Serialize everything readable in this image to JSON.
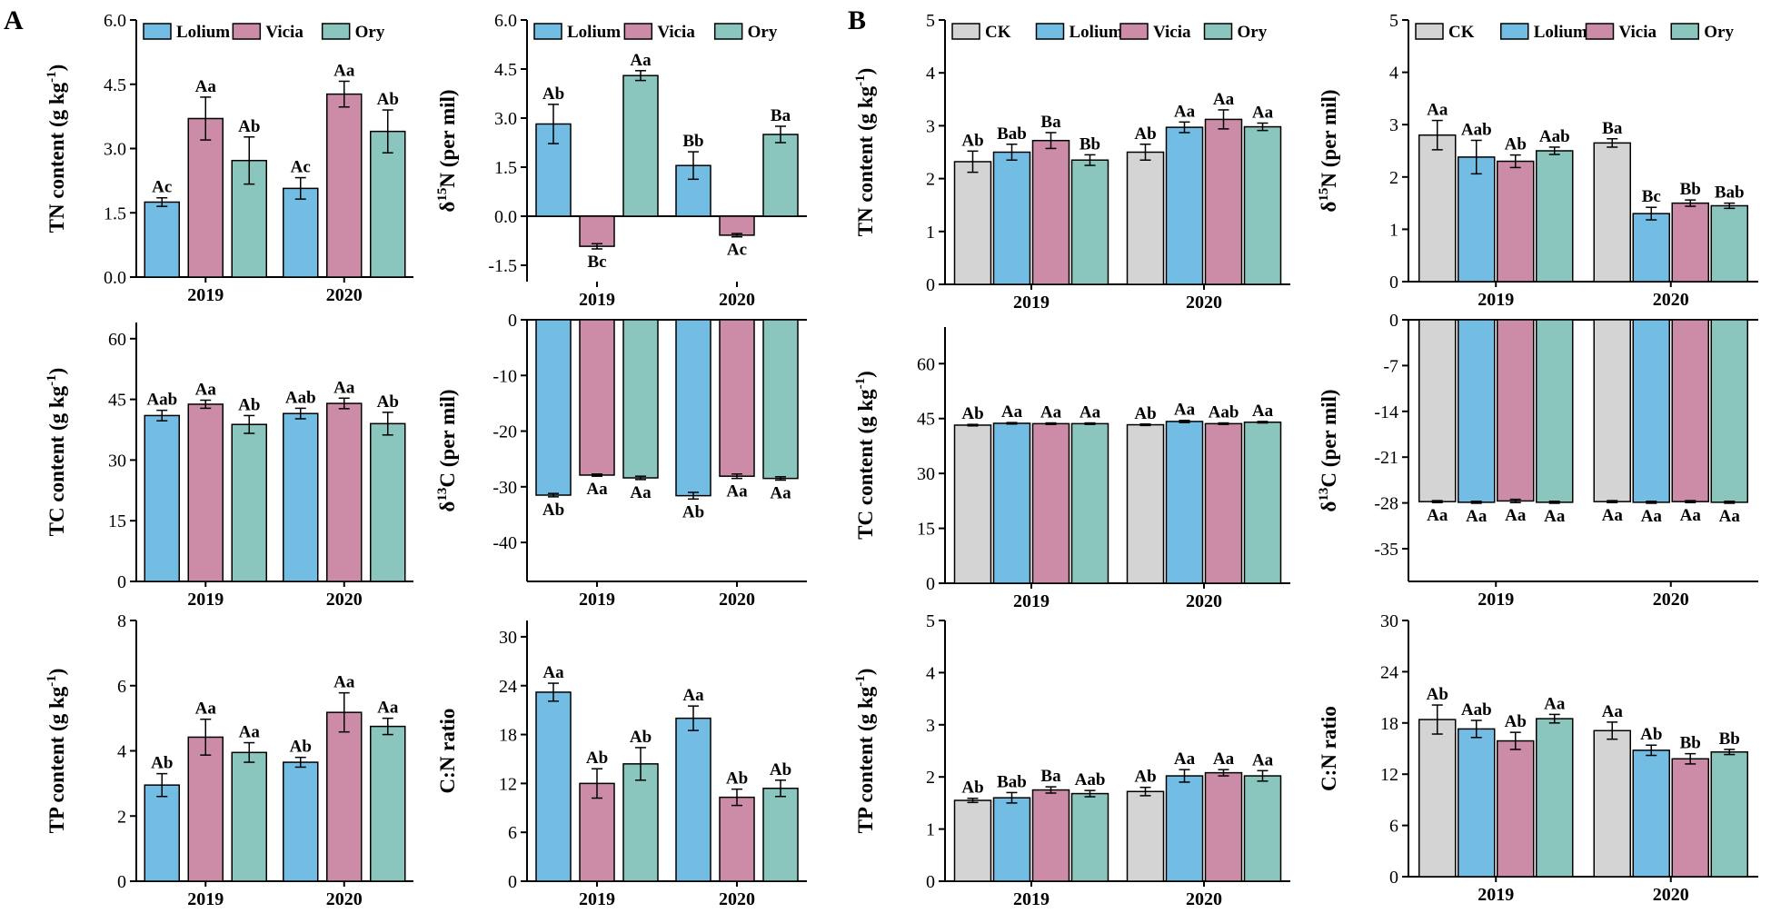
{
  "figure": {
    "panel_labels": [
      "A",
      "B"
    ],
    "colors": {
      "CK": "#d4d4d4",
      "Lolium": "#73bde5",
      "Vicia": "#cc8ca8",
      "Ory": "#8ac6bd"
    }
  },
  "chart_data": [
    {
      "id": "A-TN",
      "panel": "A",
      "type": "bar",
      "title": "",
      "xlabel": "",
      "ylabel": "TN content  (g kg-1)",
      "ylabel_main": "TN content  (g kg",
      "ylabel_sup": "-1",
      "ylabel_tail": ")",
      "ylim": [
        0,
        6
      ],
      "yticks": [
        "0.0",
        "1.5",
        "3.0",
        "4.5",
        "6.0"
      ],
      "yticks_values": [
        0,
        1.5,
        3,
        4.5,
        6
      ],
      "categories": [
        "2019",
        "2020"
      ],
      "legend": [
        "Lolium",
        "Vicia",
        "Ory"
      ],
      "series": [
        {
          "name": "Lolium",
          "values": [
            1.75,
            2.07
          ],
          "errors": [
            0.1,
            0.25
          ],
          "labels": [
            "Ac",
            "Ac"
          ]
        },
        {
          "name": "Vicia",
          "values": [
            3.7,
            4.27
          ],
          "errors": [
            0.5,
            0.3
          ],
          "labels": [
            "Aa",
            "Aa"
          ]
        },
        {
          "name": "Ory",
          "values": [
            2.72,
            3.4
          ],
          "errors": [
            0.55,
            0.5
          ],
          "labels": [
            "Ab",
            "Ab"
          ]
        }
      ]
    },
    {
      "id": "A-d15N",
      "panel": "A",
      "type": "bar",
      "title": "",
      "xlabel": "",
      "ylabel": "δ15N  (per mil)",
      "ylabel_main": "δ",
      "ylabel_sup": "15",
      "ylabel_tail": "N  (per mil)",
      "ylim": [
        -2,
        6
      ],
      "yticks": [
        "-1.5",
        "0.0",
        "1.5",
        "3.0",
        "4.5",
        "6.0"
      ],
      "yticks_values": [
        -1.5,
        0,
        1.5,
        3,
        4.5,
        6
      ],
      "categories": [
        "2019",
        "2020"
      ],
      "legend": [
        "Lolium",
        "Vicia",
        "Ory"
      ],
      "series": [
        {
          "name": "Lolium",
          "values": [
            2.82,
            1.55
          ],
          "errors": [
            0.6,
            0.42
          ],
          "labels": [
            "Ab",
            "Bb"
          ]
        },
        {
          "name": "Vicia",
          "values": [
            -0.92,
            -0.58
          ],
          "errors": [
            0.08,
            0.05
          ],
          "labels": [
            "Bc",
            "Ac"
          ]
        },
        {
          "name": "Ory",
          "values": [
            4.3,
            2.5
          ],
          "errors": [
            0.15,
            0.25
          ],
          "labels": [
            "Aa",
            "Ba"
          ]
        }
      ]
    },
    {
      "id": "A-TC",
      "panel": "A",
      "type": "bar",
      "title": "",
      "xlabel": "",
      "ylabel": "TC content  (g kg-1)",
      "ylabel_main": "TC content  (g kg",
      "ylabel_sup": "-1",
      "ylabel_tail": ")",
      "ylim": [
        0,
        64
      ],
      "yticks": [
        "0",
        "15",
        "30",
        "45",
        "60"
      ],
      "yticks_values": [
        0,
        15,
        30,
        45,
        60
      ],
      "categories": [
        "2019",
        "2020"
      ],
      "legend": [],
      "series": [
        {
          "name": "Lolium",
          "values": [
            41,
            41.5
          ],
          "errors": [
            1.3,
            1.3
          ],
          "labels": [
            "Aab",
            "Aab"
          ]
        },
        {
          "name": "Vicia",
          "values": [
            43.8,
            44
          ],
          "errors": [
            1.0,
            1.3
          ],
          "labels": [
            "Aa",
            "Aa"
          ]
        },
        {
          "name": "Ory",
          "values": [
            38.8,
            39
          ],
          "errors": [
            2.2,
            2.8
          ],
          "labels": [
            "Ab",
            "Ab"
          ]
        }
      ]
    },
    {
      "id": "A-d13C",
      "panel": "A",
      "type": "bar",
      "title": "",
      "xlabel": "",
      "ylabel": "δ13C  (per mil)",
      "ylabel_main": "δ",
      "ylabel_sup": "13",
      "ylabel_tail": "C  (per mil)",
      "ylim": [
        -47,
        0
      ],
      "yticks": [
        "-40",
        "-30",
        "-20",
        "-10",
        "0"
      ],
      "yticks_values": [
        -40,
        -30,
        -20,
        -10,
        0
      ],
      "xaxis_at_bottom": true,
      "categories": [
        "2019",
        "2020"
      ],
      "legend": [],
      "series": [
        {
          "name": "Lolium",
          "values": [
            -31.5,
            -31.6
          ],
          "errors": [
            0.3,
            0.6
          ],
          "labels": [
            "Ab",
            "Ab"
          ]
        },
        {
          "name": "Vicia",
          "values": [
            -27.9,
            -28.1
          ],
          "errors": [
            0.2,
            0.4
          ],
          "labels": [
            "Aa",
            "Aa"
          ]
        },
        {
          "name": "Ory",
          "values": [
            -28.4,
            -28.5
          ],
          "errors": [
            0.3,
            0.3
          ],
          "labels": [
            "Aa",
            "Aa"
          ]
        }
      ]
    },
    {
      "id": "A-TP",
      "panel": "A",
      "type": "bar",
      "title": "",
      "xlabel": "",
      "ylabel": "TP content  (g kg-1)",
      "ylabel_main": "TP content  (g kg",
      "ylabel_sup": "-1",
      "ylabel_tail": ")",
      "ylim": [
        0,
        8
      ],
      "yticks": [
        "0",
        "2",
        "4",
        "6",
        "8"
      ],
      "yticks_values": [
        0,
        2,
        4,
        6,
        8
      ],
      "categories": [
        "2019",
        "2020"
      ],
      "legend": [],
      "series": [
        {
          "name": "Lolium",
          "values": [
            2.95,
            3.65
          ],
          "errors": [
            0.35,
            0.15
          ],
          "labels": [
            "Ab",
            "Ab"
          ]
        },
        {
          "name": "Vicia",
          "values": [
            4.42,
            5.18
          ],
          "errors": [
            0.55,
            0.6
          ],
          "labels": [
            "Aa",
            "Aa"
          ]
        },
        {
          "name": "Ory",
          "values": [
            3.95,
            4.75
          ],
          "errors": [
            0.3,
            0.25
          ],
          "labels": [
            "Aa",
            "Aa"
          ]
        }
      ]
    },
    {
      "id": "A-CN",
      "panel": "A",
      "type": "bar",
      "title": "",
      "xlabel": "",
      "ylabel": "C:N ratio",
      "ylabel_main": "C:N ratio",
      "ylabel_sup": "",
      "ylabel_tail": "",
      "ylim": [
        0,
        32
      ],
      "yticks": [
        "0",
        "6",
        "12",
        "18",
        "24",
        "30"
      ],
      "yticks_values": [
        0,
        6,
        12,
        18,
        24,
        30
      ],
      "categories": [
        "2019",
        "2020"
      ],
      "legend": [],
      "series": [
        {
          "name": "Lolium",
          "values": [
            23.2,
            20
          ],
          "errors": [
            1.1,
            1.5
          ],
          "labels": [
            "Aa",
            "Aa"
          ]
        },
        {
          "name": "Vicia",
          "values": [
            12,
            10.3
          ],
          "errors": [
            1.8,
            1.0
          ],
          "labels": [
            "Ab",
            "Ab"
          ]
        },
        {
          "name": "Ory",
          "values": [
            14.4,
            11.4
          ],
          "errors": [
            2.0,
            1.0
          ],
          "labels": [
            "Ab",
            "Ab"
          ]
        }
      ]
    },
    {
      "id": "B-TN",
      "panel": "B",
      "type": "bar",
      "title": "",
      "xlabel": "",
      "ylabel": "TN content (g kg-1)",
      "ylabel_main": "TN content (g kg",
      "ylabel_sup": "-1",
      "ylabel_tail": ")",
      "ylim": [
        0,
        5
      ],
      "yticks": [
        "0",
        "1",
        "2",
        "3",
        "4",
        "5"
      ],
      "yticks_values": [
        0,
        1,
        2,
        3,
        4,
        5
      ],
      "categories": [
        "2019",
        "2020"
      ],
      "legend": [
        "CK",
        "Lolium",
        "Vicia",
        "Ory"
      ],
      "series": [
        {
          "name": "CK",
          "values": [
            2.32,
            2.5
          ],
          "errors": [
            0.2,
            0.15
          ],
          "labels": [
            "Ab",
            "Ab"
          ]
        },
        {
          "name": "Lolium",
          "values": [
            2.5,
            2.97
          ],
          "errors": [
            0.15,
            0.1
          ],
          "labels": [
            "Bab",
            "Aa"
          ]
        },
        {
          "name": "Vicia",
          "values": [
            2.72,
            3.12
          ],
          "errors": [
            0.15,
            0.18
          ],
          "labels": [
            "Ba",
            "Aa"
          ]
        },
        {
          "name": "Ory",
          "values": [
            2.35,
            2.98
          ],
          "errors": [
            0.1,
            0.07
          ],
          "labels": [
            "Bb",
            "Aa"
          ]
        }
      ]
    },
    {
      "id": "B-d15N",
      "panel": "B",
      "type": "bar",
      "title": "",
      "xlabel": "",
      "ylabel": "δ15N  (per mil)",
      "ylabel_main": "δ",
      "ylabel_sup": "15",
      "ylabel_tail": "N  (per mil)",
      "ylim": [
        0,
        5
      ],
      "yticks": [
        "0",
        "1",
        "2",
        "3",
        "4",
        "5"
      ],
      "yticks_values": [
        0,
        1,
        2,
        3,
        4,
        5
      ],
      "categories": [
        "2019",
        "2020"
      ],
      "legend": [
        "CK",
        "Lolium",
        "Vicia",
        "Ory"
      ],
      "series": [
        {
          "name": "CK",
          "values": [
            2.8,
            2.65
          ],
          "errors": [
            0.28,
            0.08
          ],
          "labels": [
            "Aa",
            "Ba"
          ]
        },
        {
          "name": "Lolium",
          "values": [
            2.38,
            1.3
          ],
          "errors": [
            0.32,
            0.12
          ],
          "labels": [
            "Aab",
            "Bc"
          ]
        },
        {
          "name": "Vicia",
          "values": [
            2.3,
            1.5
          ],
          "errors": [
            0.12,
            0.06
          ],
          "labels": [
            "Ab",
            "Bb"
          ]
        },
        {
          "name": "Ory",
          "values": [
            2.5,
            1.45
          ],
          "errors": [
            0.07,
            0.05
          ],
          "labels": [
            "Aab",
            "Bab"
          ]
        }
      ]
    },
    {
      "id": "B-TC",
      "panel": "B",
      "type": "bar",
      "title": "",
      "xlabel": "",
      "ylabel": "TC content (g kg-1)",
      "ylabel_main": "TC content (g kg",
      "ylabel_sup": "-1",
      "ylabel_tail": ")",
      "ylim": [
        0,
        70
      ],
      "yticks": [
        "0",
        "15",
        "30",
        "45",
        "60"
      ],
      "yticks_values": [
        0,
        15,
        30,
        45,
        60
      ],
      "categories": [
        "2019",
        "2020"
      ],
      "legend": [],
      "series": [
        {
          "name": "CK",
          "values": [
            43.2,
            43.3
          ],
          "errors": [
            0.2,
            0.2
          ],
          "labels": [
            "Ab",
            "Ab"
          ]
        },
        {
          "name": "Lolium",
          "values": [
            43.7,
            44.2
          ],
          "errors": [
            0.2,
            0.3
          ],
          "labels": [
            "Aa",
            "Aa"
          ]
        },
        {
          "name": "Vicia",
          "values": [
            43.6,
            43.6
          ],
          "errors": [
            0.2,
            0.2
          ],
          "labels": [
            "Aa",
            "Aab"
          ]
        },
        {
          "name": "Ory",
          "values": [
            43.6,
            44
          ],
          "errors": [
            0.2,
            0.2
          ],
          "labels": [
            "Aa",
            "Aa"
          ]
        }
      ]
    },
    {
      "id": "B-d13C",
      "panel": "B",
      "type": "bar",
      "title": "",
      "xlabel": "",
      "ylabel": "δ13C  (per mil)",
      "ylabel_main": "δ",
      "ylabel_sup": "13",
      "ylabel_tail": "C  (per mil)",
      "ylim": [
        -40,
        0
      ],
      "yticks": [
        "-35",
        "-28",
        "-21",
        "-14",
        "-7",
        "0"
      ],
      "yticks_values": [
        -35,
        -28,
        -21,
        -14,
        -7,
        0
      ],
      "xaxis_at_bottom": true,
      "categories": [
        "2019",
        "2020"
      ],
      "legend": [],
      "series": [
        {
          "name": "CK",
          "values": [
            -27.8,
            -27.8
          ],
          "errors": [
            0.15,
            0.15
          ],
          "labels": [
            "Aa",
            "Aa"
          ]
        },
        {
          "name": "Lolium",
          "values": [
            -27.9,
            -27.9
          ],
          "errors": [
            0.15,
            0.15
          ],
          "labels": [
            "Aa",
            "Aa"
          ]
        },
        {
          "name": "Vicia",
          "values": [
            -27.7,
            -27.8
          ],
          "errors": [
            0.25,
            0.15
          ],
          "labels": [
            "Aa",
            "Aa"
          ]
        },
        {
          "name": "Ory",
          "values": [
            -27.9,
            -27.9
          ],
          "errors": [
            0.15,
            0.15
          ],
          "labels": [
            "Aa",
            "Aa"
          ]
        }
      ]
    },
    {
      "id": "B-TP",
      "panel": "B",
      "type": "bar",
      "title": "",
      "xlabel": "",
      "ylabel": "TP content (g kg-1)",
      "ylabel_main": "TP content (g kg",
      "ylabel_sup": "-1",
      "ylabel_tail": ")",
      "ylim": [
        0,
        5
      ],
      "yticks": [
        "0",
        "1",
        "2",
        "3",
        "4",
        "5"
      ],
      "yticks_values": [
        0,
        1,
        2,
        3,
        4,
        5
      ],
      "categories": [
        "2019",
        "2020"
      ],
      "legend": [],
      "series": [
        {
          "name": "CK",
          "values": [
            1.55,
            1.72
          ],
          "errors": [
            0.04,
            0.08
          ],
          "labels": [
            "Ab",
            "Ab"
          ]
        },
        {
          "name": "Lolium",
          "values": [
            1.6,
            2.02
          ],
          "errors": [
            0.1,
            0.12
          ],
          "labels": [
            "Bab",
            "Aa"
          ]
        },
        {
          "name": "Vicia",
          "values": [
            1.75,
            2.08
          ],
          "errors": [
            0.06,
            0.06
          ],
          "labels": [
            "Ba",
            "Aa"
          ]
        },
        {
          "name": "Ory",
          "values": [
            1.68,
            2.02
          ],
          "errors": [
            0.06,
            0.1
          ],
          "labels": [
            "Aab",
            "Aa"
          ]
        }
      ]
    },
    {
      "id": "B-CN",
      "panel": "B",
      "type": "bar",
      "title": "",
      "xlabel": "",
      "ylabel": "C:N ratio",
      "ylabel_main": "C:N ratio",
      "ylabel_sup": "",
      "ylabel_tail": "",
      "ylim": [
        0,
        30
      ],
      "yticks": [
        "0",
        "6",
        "12",
        "18",
        "24",
        "30"
      ],
      "yticks_values": [
        0,
        6,
        12,
        18,
        24,
        30
      ],
      "categories": [
        "2019",
        "2020"
      ],
      "legend": [],
      "series": [
        {
          "name": "CK",
          "values": [
            18.4,
            17.1
          ],
          "errors": [
            1.7,
            1.0
          ],
          "labels": [
            "Ab",
            "Aa"
          ]
        },
        {
          "name": "Lolium",
          "values": [
            17.3,
            14.8
          ],
          "errors": [
            1.0,
            0.6
          ],
          "labels": [
            "Aab",
            "Ab"
          ]
        },
        {
          "name": "Vicia",
          "values": [
            15.9,
            13.8
          ],
          "errors": [
            1.0,
            0.6
          ],
          "labels": [
            "Ab",
            "Bb"
          ]
        },
        {
          "name": "Ory",
          "values": [
            18.5,
            14.6
          ],
          "errors": [
            0.5,
            0.3
          ],
          "labels": [
            "Aa",
            "Bb"
          ]
        }
      ]
    }
  ]
}
